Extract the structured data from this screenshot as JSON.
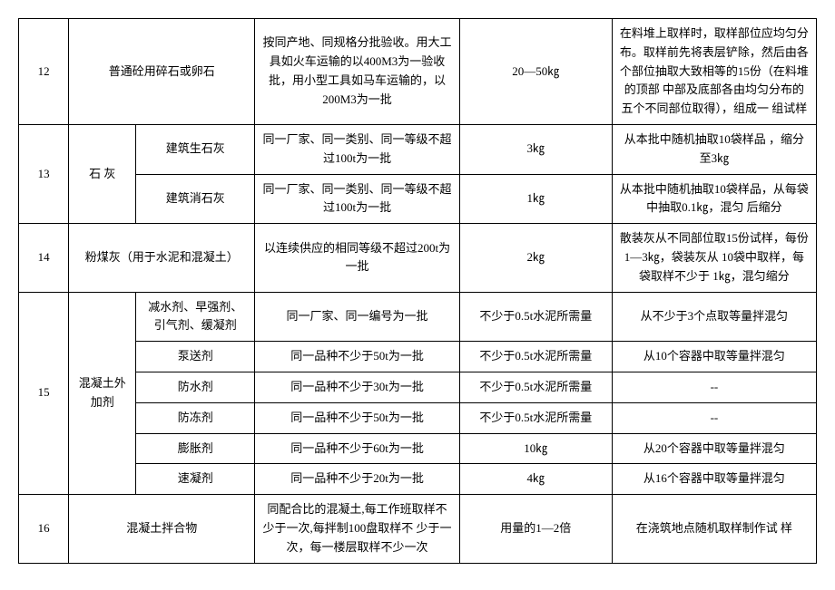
{
  "rows": {
    "r12": {
      "num": "12",
      "name": "普通砼用碎石或卵石",
      "desc": "按同产地、同规格分批验收。用大工具如火车运输的以400M3为一验收批，用小型工具如马车运输的，以200M3为一批",
      "qty": "20—50㎏",
      "method": "在料堆上取样时，取样部位应均匀分布。取样前先将表层铲除，然后由各个部位抽取大致相等的15份（在料堆的顶部 中部及底部各由均匀分布的 五个不同部位取得），组成一 组试样"
    },
    "r13": {
      "num": "13",
      "cat": "石 灰",
      "sub1": "建筑生石灰",
      "desc1": "同一厂家、同一类别、同一等级不超过100t为一批",
      "qty1": "3㎏",
      "method1": "从本批中随机抽取10袋样品 ，缩分至3㎏",
      "sub2": "建筑消石灰",
      "desc2": "同一厂家、同一类别、同一等级不超过100t为一批",
      "qty2": "1㎏",
      "method2": "从本批中随机抽取10袋样品，从每袋中抽取0.1㎏，混匀 后缩分"
    },
    "r14": {
      "num": "14",
      "name": "粉煤灰（用于水泥和混凝土）",
      "desc": "以连续供应的相同等级不超过200t为一批",
      "qty": "2㎏",
      "method": "散装灰从不同部位取15份试样，每份1—3㎏，袋装灰从 10袋中取样，每袋取样不少于 1㎏，混匀缩分"
    },
    "r15": {
      "num": "15",
      "cat": "混凝土外加剂",
      "sub1": "减水剂、早强剂、引气剂、缓凝剂",
      "desc1": "同一厂家、同一编号为一批",
      "qty1": "不少于0.5t水泥所需量",
      "method1": "从不少于3个点取等量拌混匀",
      "sub2": "泵送剂",
      "desc2": "同一品种不少于50t为一批",
      "qty2": "不少于0.5t水泥所需量",
      "method2": "从10个容器中取等量拌混匀",
      "sub3": "防水剂",
      "desc3": "同一品种不少于30t为一批",
      "qty3": "不少于0.5t水泥所需量",
      "method3": "--",
      "sub4": "防冻剂",
      "desc4": "同一品种不少于50t为一批",
      "qty4": "不少于0.5t水泥所需量",
      "method4": "--",
      "sub5": "膨胀剂",
      "desc5": "同一品种不少于60t为一批",
      "qty5": "10㎏",
      "method5": "从20个容器中取等量拌混匀",
      "sub6": "速凝剂",
      "desc6": "同一品种不少于20t为一批",
      "qty6": "4㎏",
      "method6": "从16个容器中取等量拌混匀"
    },
    "r16": {
      "num": "16",
      "name": "混凝土拌合物",
      "desc": "同配合比的混凝土,每工作班取样不少于一次,每拌制100盘取样不 少于一次，每一楼层取样不少一次",
      "qty": "用量的1—2倍",
      "method": "在浇筑地点随机取样制作试 样"
    }
  }
}
